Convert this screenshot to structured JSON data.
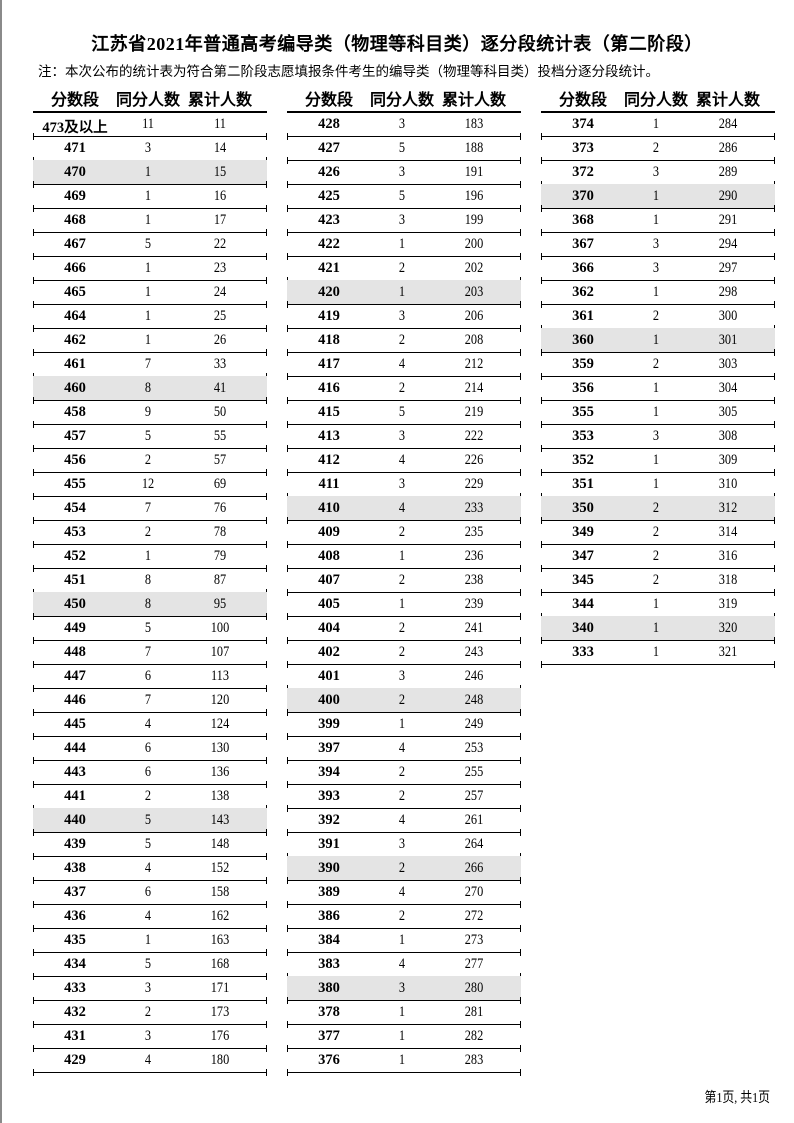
{
  "title": "江苏省2021年普通高考编导类（物理等科目类）逐分段统计表（第二阶段）",
  "note": "注：本次公布的统计表为符合第二阶段志愿填报条件考生的编导类（物理等科目类）投档分逐分段统计。",
  "headers": [
    "分数段",
    "同分人数",
    "累计人数"
  ],
  "shade_color": "#e4e4e4",
  "columns": [
    [
      [
        "473及以上",
        11,
        11
      ],
      [
        "471",
        3,
        14
      ],
      [
        "470",
        1,
        15
      ],
      [
        "469",
        1,
        16
      ],
      [
        "468",
        1,
        17
      ],
      [
        "467",
        5,
        22
      ],
      [
        "466",
        1,
        23
      ],
      [
        "465",
        1,
        24
      ],
      [
        "464",
        1,
        25
      ],
      [
        "462",
        1,
        26
      ],
      [
        "461",
        7,
        33
      ],
      [
        "460",
        8,
        41
      ],
      [
        "458",
        9,
        50
      ],
      [
        "457",
        5,
        55
      ],
      [
        "456",
        2,
        57
      ],
      [
        "455",
        12,
        69
      ],
      [
        "454",
        7,
        76
      ],
      [
        "453",
        2,
        78
      ],
      [
        "452",
        1,
        79
      ],
      [
        "451",
        8,
        87
      ],
      [
        "450",
        8,
        95
      ],
      [
        "449",
        5,
        100
      ],
      [
        "448",
        7,
        107
      ],
      [
        "447",
        6,
        113
      ],
      [
        "446",
        7,
        120
      ],
      [
        "445",
        4,
        124
      ],
      [
        "444",
        6,
        130
      ],
      [
        "443",
        6,
        136
      ],
      [
        "441",
        2,
        138
      ],
      [
        "440",
        5,
        143
      ],
      [
        "439",
        5,
        148
      ],
      [
        "438",
        4,
        152
      ],
      [
        "437",
        6,
        158
      ],
      [
        "436",
        4,
        162
      ],
      [
        "435",
        1,
        163
      ],
      [
        "434",
        5,
        168
      ],
      [
        "433",
        3,
        171
      ],
      [
        "432",
        2,
        173
      ],
      [
        "431",
        3,
        176
      ],
      [
        "429",
        4,
        180
      ]
    ],
    [
      [
        "428",
        3,
        183
      ],
      [
        "427",
        5,
        188
      ],
      [
        "426",
        3,
        191
      ],
      [
        "425",
        5,
        196
      ],
      [
        "423",
        3,
        199
      ],
      [
        "422",
        1,
        200
      ],
      [
        "421",
        2,
        202
      ],
      [
        "420",
        1,
        203
      ],
      [
        "419",
        3,
        206
      ],
      [
        "418",
        2,
        208
      ],
      [
        "417",
        4,
        212
      ],
      [
        "416",
        2,
        214
      ],
      [
        "415",
        5,
        219
      ],
      [
        "413",
        3,
        222
      ],
      [
        "412",
        4,
        226
      ],
      [
        "411",
        3,
        229
      ],
      [
        "410",
        4,
        233
      ],
      [
        "409",
        2,
        235
      ],
      [
        "408",
        1,
        236
      ],
      [
        "407",
        2,
        238
      ],
      [
        "405",
        1,
        239
      ],
      [
        "404",
        2,
        241
      ],
      [
        "402",
        2,
        243
      ],
      [
        "401",
        3,
        246
      ],
      [
        "400",
        2,
        248
      ],
      [
        "399",
        1,
        249
      ],
      [
        "397",
        4,
        253
      ],
      [
        "394",
        2,
        255
      ],
      [
        "393",
        2,
        257
      ],
      [
        "392",
        4,
        261
      ],
      [
        "391",
        3,
        264
      ],
      [
        "390",
        2,
        266
      ],
      [
        "389",
        4,
        270
      ],
      [
        "386",
        2,
        272
      ],
      [
        "384",
        1,
        273
      ],
      [
        "383",
        4,
        277
      ],
      [
        "380",
        3,
        280
      ],
      [
        "378",
        1,
        281
      ],
      [
        "377",
        1,
        282
      ],
      [
        "376",
        1,
        283
      ]
    ],
    [
      [
        "374",
        1,
        284
      ],
      [
        "373",
        2,
        286
      ],
      [
        "372",
        3,
        289
      ],
      [
        "370",
        1,
        290
      ],
      [
        "368",
        1,
        291
      ],
      [
        "367",
        3,
        294
      ],
      [
        "366",
        3,
        297
      ],
      [
        "362",
        1,
        298
      ],
      [
        "361",
        2,
        300
      ],
      [
        "360",
        1,
        301
      ],
      [
        "359",
        2,
        303
      ],
      [
        "356",
        1,
        304
      ],
      [
        "355",
        1,
        305
      ],
      [
        "353",
        3,
        308
      ],
      [
        "352",
        1,
        309
      ],
      [
        "351",
        1,
        310
      ],
      [
        "350",
        2,
        312
      ],
      [
        "349",
        2,
        314
      ],
      [
        "347",
        2,
        316
      ],
      [
        "345",
        2,
        318
      ],
      [
        "344",
        1,
        319
      ],
      [
        "340",
        1,
        320
      ],
      [
        "333",
        1,
        321
      ]
    ]
  ],
  "footer": "第1页, 共1页"
}
